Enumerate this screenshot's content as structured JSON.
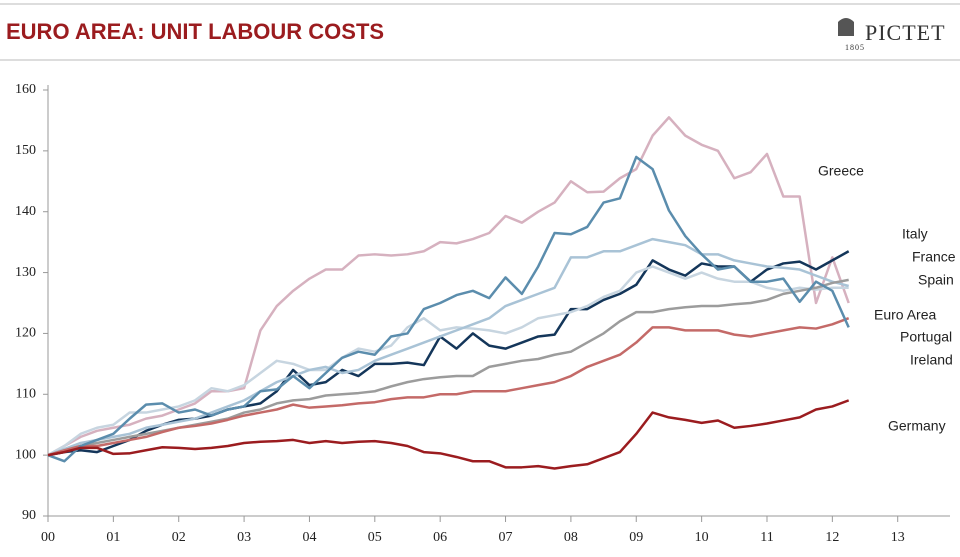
{
  "brand": {
    "name": "PICTET",
    "year": "1805"
  },
  "chart_data": {
    "type": "line",
    "title": "EURO AREA: UNIT LABOUR COSTS",
    "x": [
      2000,
      2000.25,
      2000.5,
      2000.75,
      2001,
      2001.25,
      2001.5,
      2001.75,
      2002,
      2002.25,
      2002.5,
      2002.75,
      2003,
      2003.25,
      2003.5,
      2003.75,
      2004,
      2004.25,
      2004.5,
      2004.75,
      2005,
      2005.25,
      2005.5,
      2005.75,
      2006,
      2006.25,
      2006.5,
      2006.75,
      2007,
      2007.25,
      2007.5,
      2007.75,
      2008,
      2008.25,
      2008.5,
      2008.75,
      2009,
      2009.25,
      2009.5,
      2009.75,
      2010,
      2010.25,
      2010.5,
      2010.75,
      2011,
      2011.25,
      2011.5,
      2011.75,
      2012,
      2012.25
    ],
    "xlim": [
      2000,
      2013.8
    ],
    "xticks": [
      {
        "value": 2000,
        "label": "00"
      },
      {
        "value": 2001,
        "label": "01"
      },
      {
        "value": 2002,
        "label": "02"
      },
      {
        "value": 2003,
        "label": "03"
      },
      {
        "value": 2004,
        "label": "04"
      },
      {
        "value": 2005,
        "label": "05"
      },
      {
        "value": 2006,
        "label": "06"
      },
      {
        "value": 2007,
        "label": "07"
      },
      {
        "value": 2008,
        "label": "08"
      },
      {
        "value": 2009,
        "label": "09"
      },
      {
        "value": 2010,
        "label": "10"
      },
      {
        "value": 2011,
        "label": "11"
      },
      {
        "value": 2012,
        "label": "12"
      },
      {
        "value": 2013,
        "label": "13"
      }
    ],
    "ylim": [
      90,
      160
    ],
    "yticks": [
      90,
      100,
      110,
      120,
      130,
      140,
      150,
      160
    ],
    "grid": false,
    "series": [
      {
        "name": "Greece",
        "color": "#d6b1bf",
        "values": [
          100,
          101.5,
          103,
          104,
          104.5,
          105,
          106,
          106.5,
          107.5,
          108.5,
          110.5,
          110.5,
          111,
          120.5,
          124.5,
          127,
          129,
          130.5,
          130.5,
          132.8,
          133,
          132.8,
          133,
          133.5,
          135,
          134.8,
          135.5,
          136.5,
          139.3,
          138.2,
          140,
          141.5,
          145,
          143.2,
          143.3,
          145.5,
          147,
          152.5,
          155.5,
          152.5,
          151,
          150,
          145.5,
          146.5,
          149.5,
          142.5,
          142.5,
          125,
          132.5,
          125
        ]
      },
      {
        "name": "Italy",
        "color": "#14365a",
        "values": [
          100,
          100.5,
          100.8,
          100.5,
          101.5,
          102.5,
          104,
          105,
          105.8,
          106,
          106.5,
          107.5,
          108,
          108.5,
          110.5,
          114,
          111.5,
          112,
          114,
          113,
          115,
          115,
          115.2,
          114.8,
          119.5,
          117.5,
          120,
          118,
          117.5,
          118.5,
          119.5,
          119.8,
          124,
          124,
          125.5,
          126.5,
          128,
          132,
          130.5,
          129.5,
          131.5,
          131,
          131,
          128.5,
          130.5,
          131.5,
          131.8,
          130.5,
          132,
          133.5
        ]
      },
      {
        "name": "France",
        "color": "#c7d5e0",
        "values": [
          100,
          101.5,
          103.5,
          104.5,
          105,
          107,
          107,
          107.5,
          108,
          109,
          111,
          110.5,
          111.5,
          113.5,
          115.5,
          115,
          114,
          114,
          116,
          117.5,
          117,
          118,
          121,
          122.5,
          120.5,
          121,
          120.8,
          120.5,
          120,
          121,
          122.5,
          123,
          123.5,
          124.5,
          126,
          127,
          130,
          131,
          130,
          129,
          130,
          129,
          128.5,
          128.5,
          127.5,
          127,
          127.5,
          127.2,
          127.5,
          127.5
        ]
      },
      {
        "name": "Spain",
        "color": "#a9c3d6",
        "values": [
          100,
          101,
          102,
          102.5,
          103,
          103.5,
          104.5,
          105,
          105.5,
          106,
          107,
          108,
          109,
          110.5,
          112,
          113,
          114,
          114.5,
          113.5,
          114,
          115.5,
          116.5,
          117.5,
          118.5,
          119.5,
          120.5,
          121.5,
          122.5,
          124.5,
          125.5,
          126.5,
          127.5,
          132.5,
          132.5,
          133.5,
          133.5,
          134.5,
          135.5,
          135,
          134.5,
          133,
          133,
          132,
          131.5,
          131,
          130.8,
          130.5,
          129.5,
          128.5,
          127.8
        ]
      },
      {
        "name": "Euro Area",
        "color": "#9c9c9c",
        "values": [
          100,
          100.8,
          101.5,
          102,
          102.5,
          103,
          103.5,
          104,
          104.5,
          105,
          105.5,
          106,
          107,
          107.5,
          108.5,
          109,
          109.2,
          109.8,
          110,
          110.2,
          110.5,
          111.3,
          112,
          112.5,
          112.8,
          113,
          113,
          114.5,
          115,
          115.5,
          115.8,
          116.5,
          117,
          118.5,
          120,
          122,
          123.5,
          123.5,
          124,
          124.3,
          124.5,
          124.5,
          124.8,
          125,
          125.5,
          126.5,
          127,
          127.5,
          128.3,
          128.8
        ]
      },
      {
        "name": "Portugal",
        "color": "#c46a68",
        "values": [
          100,
          100.8,
          101.5,
          101.5,
          102,
          102.5,
          103,
          103.8,
          104.5,
          104.8,
          105.2,
          105.8,
          106.5,
          107,
          107.5,
          108.3,
          107.8,
          108,
          108.2,
          108.5,
          108.7,
          109.2,
          109.5,
          109.5,
          110,
          110,
          110.5,
          110.5,
          110.5,
          111,
          111.5,
          112,
          113,
          114.5,
          115.5,
          116.5,
          118.5,
          121,
          121,
          120.5,
          120.5,
          120.5,
          119.8,
          119.5,
          120,
          120.5,
          121,
          120.8,
          121.5,
          122.5
        ]
      },
      {
        "name": "Ireland",
        "color": "#5b8dad",
        "values": [
          100,
          99,
          101.5,
          102.5,
          103.5,
          106,
          108.3,
          108.5,
          107,
          107.5,
          106.5,
          107.5,
          108,
          110.5,
          110.8,
          113,
          111,
          113.5,
          116,
          117,
          116.5,
          119.5,
          120,
          124,
          125,
          126.3,
          127,
          125.8,
          129.2,
          126.5,
          131,
          136.5,
          136.3,
          137.5,
          141.5,
          142.2,
          149,
          147,
          140.2,
          136,
          133,
          130.5,
          131,
          128.5,
          128.5,
          129,
          125.2,
          128.5,
          127,
          121
        ]
      },
      {
        "name": "Germany",
        "color": "#9b1c1f",
        "values": [
          100,
          100.5,
          101.2,
          101.2,
          100.2,
          100.3,
          100.8,
          101.3,
          101.2,
          101,
          101.2,
          101.5,
          102,
          102.2,
          102.3,
          102.5,
          102,
          102.3,
          102,
          102.2,
          102.3,
          102,
          101.5,
          100.5,
          100.3,
          99.7,
          99,
          99,
          98,
          98,
          98.2,
          97.8,
          98.2,
          98.5,
          99.5,
          100.5,
          103.5,
          107,
          106.2,
          105.8,
          105.3,
          105.7,
          104.5,
          104.8,
          105.2,
          105.7,
          106.2,
          107.5,
          108,
          109
        ]
      }
    ]
  }
}
